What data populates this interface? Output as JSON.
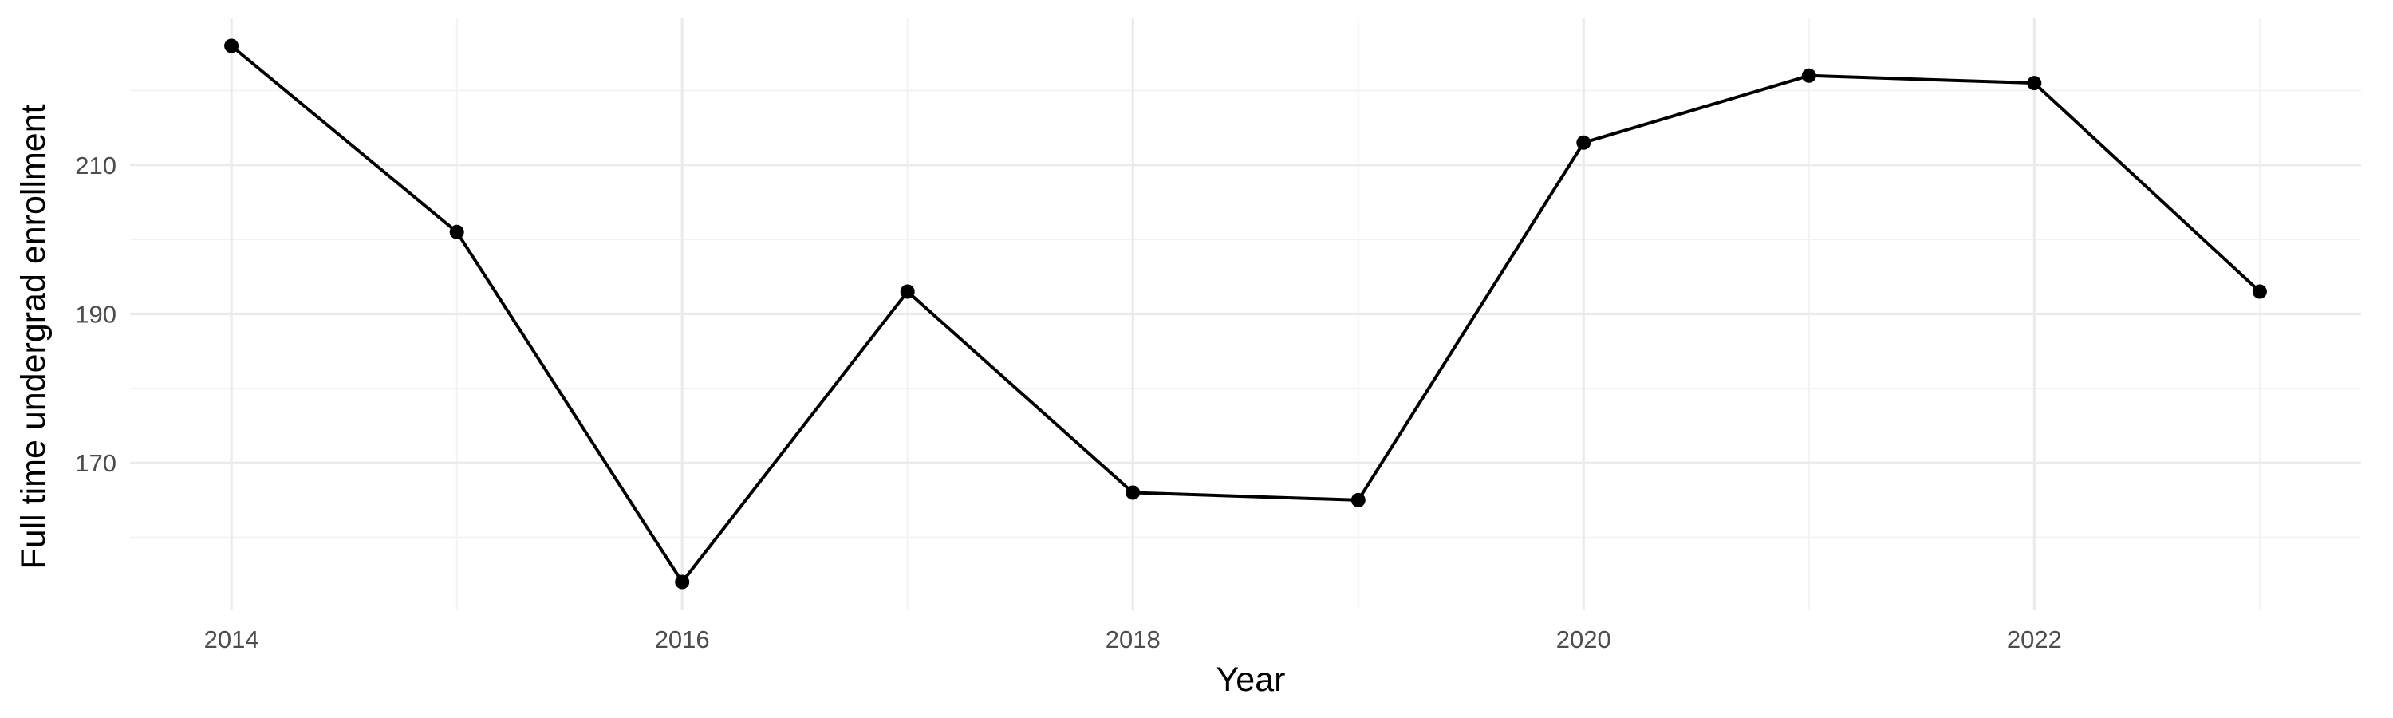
{
  "chart_data": {
    "type": "line",
    "title": "",
    "xlabel": "Year",
    "ylabel": "Full time undergrad enrollment",
    "x": [
      2014,
      2015,
      2016,
      2017,
      2018,
      2019,
      2020,
      2021,
      2022,
      2023
    ],
    "series": [
      {
        "values": [
          226,
          201,
          154,
          193,
          166,
          165,
          213,
          222,
          221,
          193
        ]
      }
    ],
    "xticks": [
      "2014",
      "2016",
      "2018",
      "2020",
      "2022"
    ],
    "yticks": [
      "170",
      "190",
      "210"
    ],
    "xlim": [
      2013.55,
      2023.45
    ],
    "ylim": [
      150.2,
      229.8
    ],
    "grid": true,
    "legend": "none",
    "line_color": "#000000",
    "grid_color": "#ebebeb"
  }
}
